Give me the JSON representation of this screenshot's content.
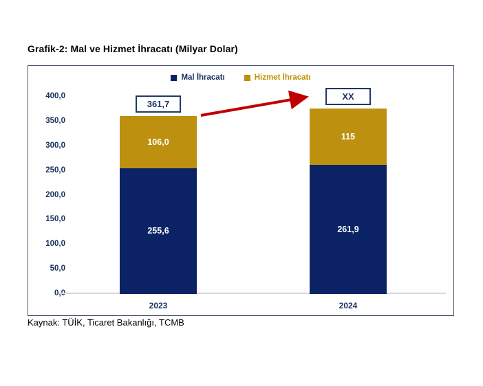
{
  "page": {
    "title": "Grafik-2: Mal ve Hizmet İhracatı (Milyar Dolar)",
    "source": "Kaynak: TÜİK, Ticaret Bakanlığı, TCMB"
  },
  "chart_data": {
    "type": "bar",
    "stacked": true,
    "title": "Grafik-2: Mal ve Hizmet İhracatı (Milyar Dolar)",
    "unit": "Milyar Dolar",
    "categories": [
      "2023",
      "2024"
    ],
    "series": [
      {
        "name": "Mal İhracatı",
        "color": "#0B2265",
        "values": [
          255.6,
          261.9
        ],
        "labels": [
          "255,6",
          "261,9"
        ]
      },
      {
        "name": "Hizmet İhracatı",
        "color": "#BD9010",
        "values": [
          106.0,
          115
        ],
        "labels": [
          "106,0",
          "115"
        ]
      }
    ],
    "totals": [
      "361,7",
      "XX"
    ],
    "ylim": [
      0,
      400
    ],
    "ytick_step": 50,
    "yticks": [
      "400,0",
      "350,0",
      "300,0",
      "250,0",
      "200,0",
      "150,0",
      "100,0",
      "50,0",
      "0,0"
    ],
    "legend_position": "top-center",
    "grid": false,
    "annotation": {
      "type": "arrow",
      "color": "#C00000",
      "from": "2023 total box",
      "to": "2024 total box"
    }
  },
  "colors": {
    "navy_text": "#17305F",
    "gold_text": "#BF9000",
    "frame_border": "#44546A",
    "box_border": "#1F3864",
    "baseline": "#D9D9D9",
    "arrow": "#C00000",
    "segment_label": "#FFFFFF"
  }
}
